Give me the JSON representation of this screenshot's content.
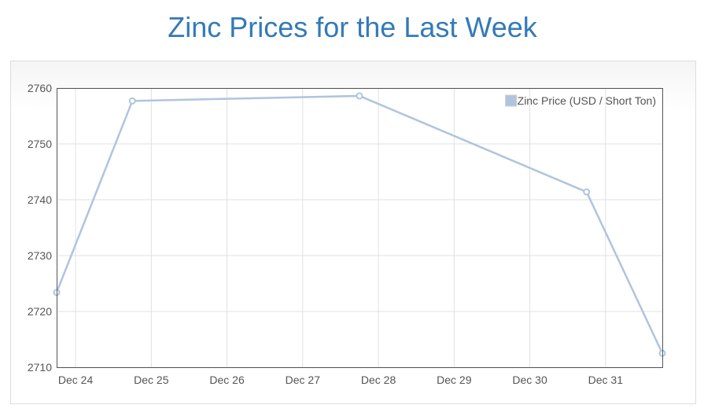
{
  "chart_data": {
    "type": "line",
    "title": "Zinc Prices for the Last Week",
    "x": [
      23.75,
      24.75,
      27.75,
      30.75,
      31.75
    ],
    "series": [
      {
        "name": "Zinc Price (USD / Short Ton)",
        "color": "#b0c4de",
        "values": [
          2723.4,
          2757.7,
          2758.6,
          2741.4,
          2712.5
        ]
      }
    ],
    "xlim": [
      23.75,
      31.75
    ],
    "xticks": [
      {
        "value": 24,
        "label": "Dec 24"
      },
      {
        "value": 25,
        "label": "Dec 25"
      },
      {
        "value": 26,
        "label": "Dec 26"
      },
      {
        "value": 27,
        "label": "Dec 27"
      },
      {
        "value": 28,
        "label": "Dec 28"
      },
      {
        "value": 29,
        "label": "Dec 29"
      },
      {
        "value": 30,
        "label": "Dec 30"
      },
      {
        "value": 31,
        "label": "Dec 31"
      }
    ],
    "ylim": [
      2710,
      2760
    ],
    "yticks": [
      2710,
      2720,
      2730,
      2740,
      2750,
      2760
    ],
    "grid": true,
    "legend": "top-right"
  }
}
